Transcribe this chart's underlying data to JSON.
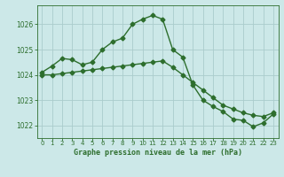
{
  "line1_x": [
    0,
    1,
    2,
    3,
    4,
    5,
    6,
    7,
    8,
    9,
    10,
    11,
    12,
    13,
    14,
    15,
    16,
    17,
    18,
    19,
    20,
    21,
    22,
    23
  ],
  "line1_y": [
    1024.1,
    1024.35,
    1024.65,
    1024.6,
    1024.4,
    1024.5,
    1025.0,
    1025.3,
    1025.45,
    1026.0,
    1026.2,
    1026.35,
    1026.2,
    1025.0,
    1024.7,
    1023.6,
    1023.0,
    1022.75,
    1022.55,
    1022.25,
    1022.2,
    1021.95,
    1022.1,
    1022.45
  ],
  "line2_x": [
    0,
    1,
    2,
    3,
    4,
    5,
    6,
    7,
    8,
    9,
    10,
    11,
    12,
    13,
    14,
    15,
    16,
    17,
    18,
    19,
    20,
    21,
    22,
    23
  ],
  "line2_y": [
    1024.0,
    1024.0,
    1024.05,
    1024.1,
    1024.15,
    1024.2,
    1024.25,
    1024.3,
    1024.35,
    1024.4,
    1024.45,
    1024.5,
    1024.55,
    1024.3,
    1024.0,
    1023.7,
    1023.4,
    1023.1,
    1022.8,
    1022.65,
    1022.5,
    1022.4,
    1022.35,
    1022.5
  ],
  "line_color": "#2d6e2d",
  "bg_color": "#cce8e8",
  "grid_color": "#aacccc",
  "xlabel": "Graphe pression niveau de la mer (hPa)",
  "xlabel_color": "#2d6e2d",
  "ylim": [
    1021.5,
    1026.75
  ],
  "yticks": [
    1022,
    1023,
    1024,
    1025,
    1026
  ],
  "xticks": [
    0,
    1,
    2,
    3,
    4,
    5,
    6,
    7,
    8,
    9,
    10,
    11,
    12,
    13,
    14,
    15,
    16,
    17,
    18,
    19,
    20,
    21,
    22,
    23
  ],
  "marker": "D",
  "markersize": 2.5,
  "linewidth": 1.0
}
